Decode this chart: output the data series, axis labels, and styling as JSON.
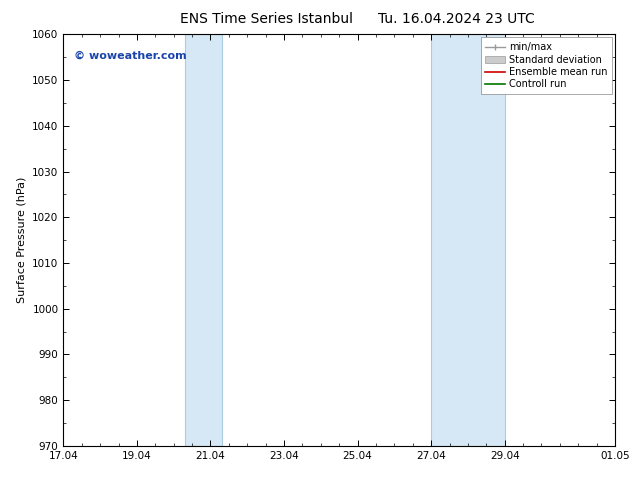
{
  "title": "ENS Time Series Istanbul",
  "title2": "Tu. 16.04.2024 23 UTC",
  "ylabel": "Surface Pressure (hPa)",
  "ylim": [
    970,
    1060
  ],
  "yticks": [
    970,
    980,
    990,
    1000,
    1010,
    1020,
    1030,
    1040,
    1050,
    1060
  ],
  "xlim": [
    0,
    15
  ],
  "xtick_labels": [
    "17.04",
    "19.04",
    "21.04",
    "23.04",
    "25.04",
    "27.04",
    "29.04",
    "01.05"
  ],
  "xtick_positions": [
    0,
    2,
    4,
    6,
    8,
    10,
    12,
    15
  ],
  "blue_bands": [
    {
      "start": 3.3,
      "end": 4.3
    },
    {
      "start": 10.0,
      "end": 12.0
    }
  ],
  "band_color": "#d6e8f5",
  "band_edge_color": "#aacce0",
  "watermark": "© woweather.com",
  "watermark_color": "#1a44aa",
  "background_color": "#ffffff",
  "plot_bg_color": "#ffffff",
  "legend_labels": [
    "min/max",
    "Standard deviation",
    "Ensemble mean run",
    "Controll run"
  ],
  "legend_colors_line": [
    "#999999",
    "#bbbbbb",
    "#cc0000",
    "#007700"
  ],
  "title_fontsize": 10,
  "tick_fontsize": 7.5,
  "ylabel_fontsize": 8,
  "watermark_fontsize": 8,
  "legend_fontsize": 7
}
